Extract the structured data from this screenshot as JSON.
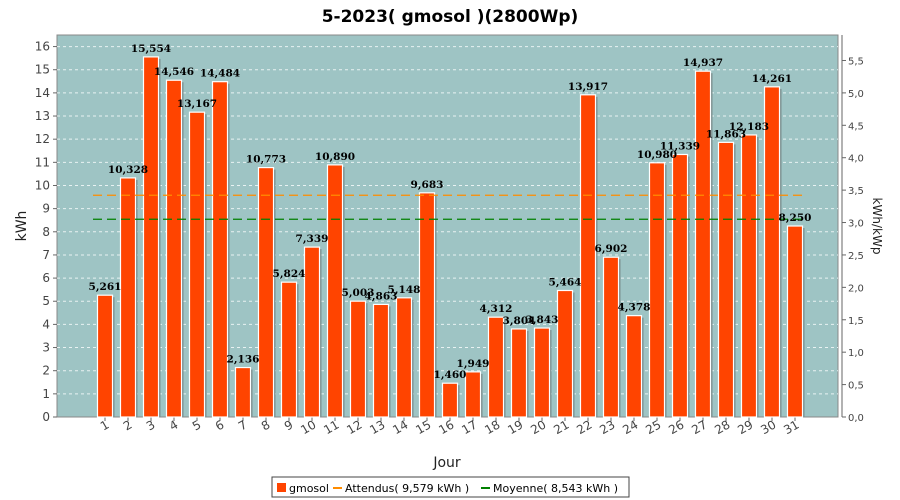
{
  "chart_data": {
    "type": "bar",
    "title": "5-2023( gmosol )(2800Wp)",
    "xlabel": "Jour",
    "ylabel": "kWh",
    "y2label": "kWh/kWp",
    "categories": [
      "1",
      "2",
      "3",
      "4",
      "5",
      "6",
      "7",
      "8",
      "9",
      "10",
      "11",
      "12",
      "13",
      "14",
      "15",
      "16",
      "17",
      "18",
      "19",
      "20",
      "21",
      "22",
      "23",
      "24",
      "25",
      "26",
      "27",
      "28",
      "29",
      "30",
      "31"
    ],
    "series": [
      {
        "name": "gmosol",
        "values": [
          5.261,
          10.328,
          15.554,
          14.546,
          13.167,
          14.484,
          2.136,
          10.773,
          5.824,
          7.339,
          10.89,
          5.003,
          4.863,
          5.148,
          9.683,
          1.46,
          1.949,
          4.312,
          3.804,
          3.843,
          5.464,
          13.917,
          6.902,
          4.378,
          10.98,
          11.339,
          14.937,
          11.863,
          12.183,
          14.261,
          8.25
        ],
        "labels": [
          "5,261",
          "10,328",
          "15,554",
          "14,546",
          "13,167",
          "14,484",
          "2,136",
          "10,773",
          "5,824",
          "7,339",
          "10,890",
          "5,003",
          "4,863",
          "5,148",
          "9,683",
          "1,460",
          "1,949",
          "4,312",
          "3,804",
          "3,843",
          "5,464",
          "13,917",
          "6,902",
          "4,378",
          "10,980",
          "11,339",
          "14,937",
          "11,863",
          "12,183",
          "14,261",
          "8,250"
        ],
        "color": "#ff4400"
      }
    ],
    "lines": [
      {
        "name": "Attendus",
        "value": 9.579,
        "legend": "Attendus( 9,579 kWh )",
        "color": "#ff8c00"
      },
      {
        "name": "Moyenne",
        "value": 8.543,
        "legend": "Moyenne( 8,543 kWh )",
        "color": "#008000"
      }
    ],
    "ylim": [
      0,
      16.5
    ],
    "yticks": [
      "0",
      "1",
      "2",
      "3",
      "4",
      "5",
      "6",
      "7",
      "8",
      "9",
      "10",
      "11",
      "12",
      "13",
      "14",
      "15",
      "16"
    ],
    "y2lim": [
      0,
      5.893
    ],
    "y2ticks": [
      "0,0",
      "0,5",
      "1,0",
      "1,5",
      "2,0",
      "2,5",
      "3,0",
      "3,5",
      "4,0",
      "4,5",
      "5,0",
      "5,5"
    ],
    "plot_bg": "#9ec4c4",
    "grid": true,
    "legend_position": "bottom"
  }
}
